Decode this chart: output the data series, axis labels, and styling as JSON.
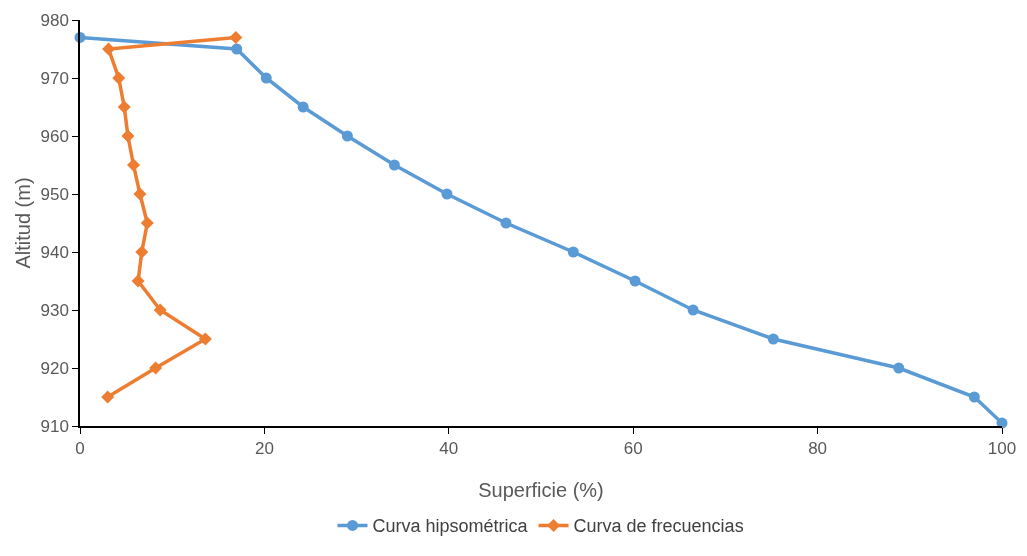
{
  "chart_data": {
    "type": "line",
    "xlabel": "Superficie (%)",
    "ylabel": "Altitud (m)",
    "xlim": [
      0,
      100
    ],
    "xticks": [
      0,
      20,
      40,
      60,
      80,
      100
    ],
    "ylim": [
      910,
      980
    ],
    "yticks": [
      910,
      920,
      930,
      940,
      950,
      960,
      970,
      980
    ],
    "grid": false,
    "legend": "bottom",
    "series": [
      {
        "name": "Curva hipsométrica",
        "color": "#5b9bd5",
        "marker": "circle",
        "x": [
          0,
          17.0,
          20.2,
          24.2,
          29.0,
          34.1,
          39.8,
          46.2,
          53.5,
          60.2,
          66.5,
          75.2,
          88.8,
          97.0,
          100
        ],
        "values": [
          977,
          975,
          970,
          965,
          960,
          955,
          950,
          945,
          940,
          935,
          930,
          925,
          920,
          915,
          910.5
        ]
      },
      {
        "name": "Curva de frecuencias",
        "color": "#ed7d31",
        "marker": "diamond",
        "x": [
          16.9,
          3.1,
          4.2,
          4.8,
          5.2,
          5.8,
          6.5,
          7.3,
          6.7,
          6.3,
          8.7,
          13.6,
          8.2,
          3.0
        ],
        "values": [
          977,
          975,
          970,
          965,
          960,
          955,
          950,
          945,
          940,
          935,
          930,
          925,
          920,
          915
        ]
      }
    ]
  }
}
